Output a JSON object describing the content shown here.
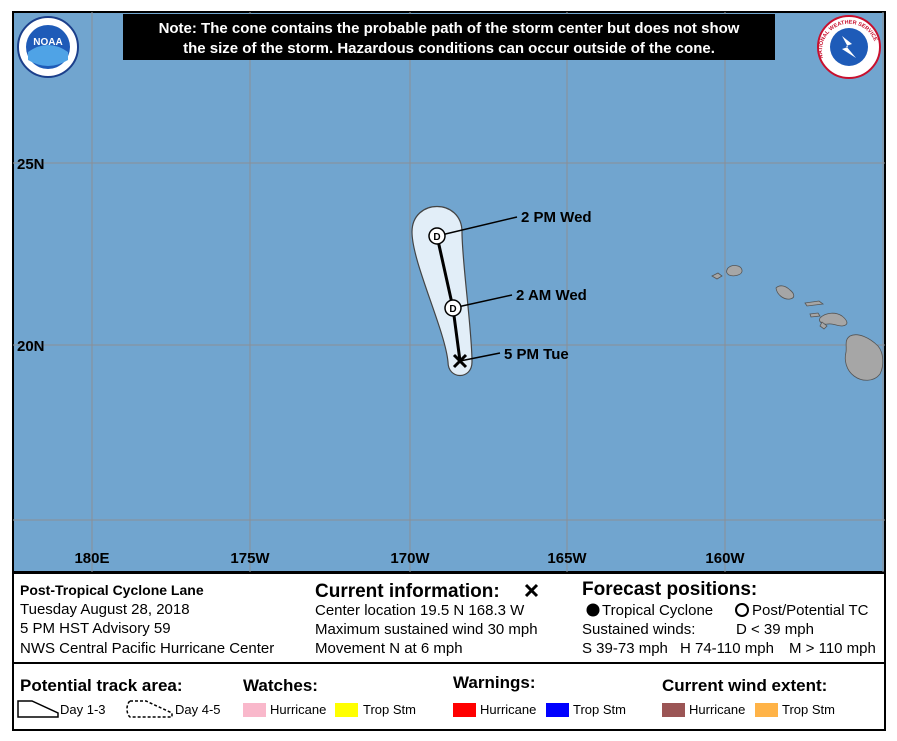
{
  "note": [
    "Note: The cone contains the probable path of the storm center but does not show",
    "the size of the storm. Hazardous conditions can occur outside of the cone."
  ],
  "logos": {
    "noaa": "NOAA",
    "nws": "NATIONAL WEATHER SERVICE"
  },
  "map": {
    "latitudes": [
      "25N",
      "20N"
    ],
    "longitudes": [
      "180E",
      "175W",
      "170W",
      "165W",
      "160W"
    ],
    "track_labels": [
      "5 PM Tue",
      "2 AM Wed",
      "2 PM Wed"
    ],
    "point_symbols": [
      "D",
      "D"
    ]
  },
  "info": {
    "storm": "Post-Tropical Cyclone Lane",
    "date": "Tuesday August 28, 2018",
    "advisory": "5 PM HST Advisory 59",
    "center": "NWS Central Pacific Hurricane Center"
  },
  "current": {
    "title": "Current information:",
    "lines": [
      "Center location 19.5 N 168.3 W",
      "Maximum sustained wind 30 mph",
      "Movement N at 6 mph"
    ]
  },
  "forecast": {
    "title": "Forecast positions:",
    "tropical": "Tropical Cyclone",
    "post": "Post/Potential TC",
    "sustained": "Sustained winds:",
    "d": "D < 39 mph",
    "s": "S 39-73 mph",
    "h": "H 74-110 mph",
    "m": "M > 110 mph"
  },
  "legend": {
    "track_title": "Potential track area:",
    "day13": "Day 1-3",
    "day45": "Day 4-5",
    "watches": "Watches:",
    "watch_hurricane": "Hurricane",
    "watch_trop": "Trop Stm",
    "warnings": "Warnings:",
    "warn_hurricane": "Hurricane",
    "warn_trop": "Trop Stm",
    "wind": "Current wind extent:",
    "wind_hurricane": "Hurricane",
    "wind_trop": "Trop Stm"
  }
}
